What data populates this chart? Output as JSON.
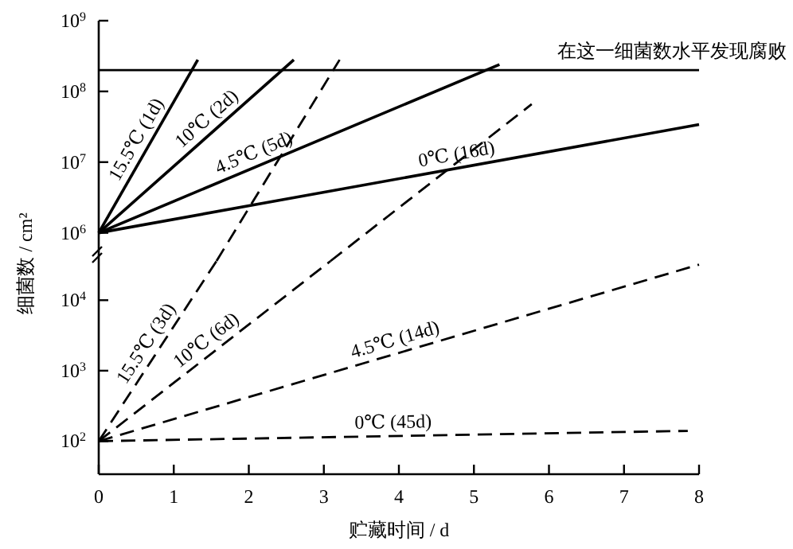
{
  "chart_data": [
    {
      "type": "line",
      "ylabel": "细菌数 / cm²",
      "xlim": [
        0,
        8
      ],
      "ylim": [
        400000,
        1000000000
      ],
      "log": "y",
      "tick_labels": "y",
      "yticks": [
        {
          "value": 1000000,
          "label": "10$^{6}$"
        },
        {
          "value": 10000000,
          "label": "10$^{7}$"
        },
        {
          "value": 100000000,
          "label": "10$^{8}$"
        },
        {
          "value": 1000000000,
          "label": "10$^{9}$"
        }
      ],
      "ref_lines": [
        {
          "axis": "y",
          "value": 200000000,
          "label": "在这一细菌数水平发现腐败",
          "color": "#000000"
        }
      ],
      "series": [
        {
          "name": "15.5℃ (1d)",
          "color": "#000000",
          "line_style": "solid",
          "x": [
            0,
            1.32
          ],
          "values": [
            1000000,
            280000000
          ]
        },
        {
          "name": "10℃ (2d)",
          "color": "#000000",
          "line_style": "solid",
          "x": [
            0,
            2.6
          ],
          "values": [
            1000000,
            280000000
          ]
        },
        {
          "name": "4.5℃ (5d)",
          "color": "#000000",
          "line_style": "solid",
          "x": [
            0,
            5.34
          ],
          "values": [
            1000000,
            240000000
          ]
        },
        {
          "name": "0℃ (16d)",
          "color": "#000000",
          "line_style": "solid",
          "x": [
            0,
            8
          ],
          "values": [
            1000000,
            34000000
          ]
        },
        {
          "color": "#000000",
          "line_style": "dashed",
          "x": [
            1.57,
            3.21
          ],
          "values": [
            400000,
            280000000
          ]
        },
        {
          "color": "#000000",
          "line_style": "dashed",
          "x": [
            3.09,
            5.77
          ],
          "values": [
            400000,
            66000000
          ]
        }
      ]
    },
    {
      "type": "line",
      "xlabel": "贮藏时间 / d",
      "xlim": [
        0,
        8
      ],
      "xticks": [
        0,
        1,
        2,
        3,
        4,
        5,
        6,
        7,
        8
      ],
      "ylim": [
        34,
        36000
      ],
      "log": "y",
      "yticks": [
        {
          "value": 100,
          "label": "10$^{2}$"
        },
        {
          "value": 1000,
          "label": "10$^{3}$"
        },
        {
          "value": 10000,
          "label": "10$^{4}$"
        }
      ],
      "series": [
        {
          "name": "15.5℃ (3d)",
          "color": "#000000",
          "line_style": "dashed",
          "x": [
            0,
            1.57
          ],
          "values": [
            100,
            36000
          ]
        },
        {
          "name": "10℃ (6d)",
          "color": "#000000",
          "line_style": "dashed",
          "x": [
            0,
            3.09
          ],
          "values": [
            100,
            36000
          ]
        },
        {
          "name": "4.5℃ (14d)",
          "color": "#000000",
          "line_style": "dashed",
          "x": [
            0,
            8
          ],
          "values": [
            100,
            32000
          ]
        },
        {
          "name": "0℃ (45d)",
          "color": "#000000",
          "line_style": "dashed",
          "x": [
            0,
            7.85
          ],
          "values": [
            100,
            140
          ]
        }
      ]
    }
  ]
}
